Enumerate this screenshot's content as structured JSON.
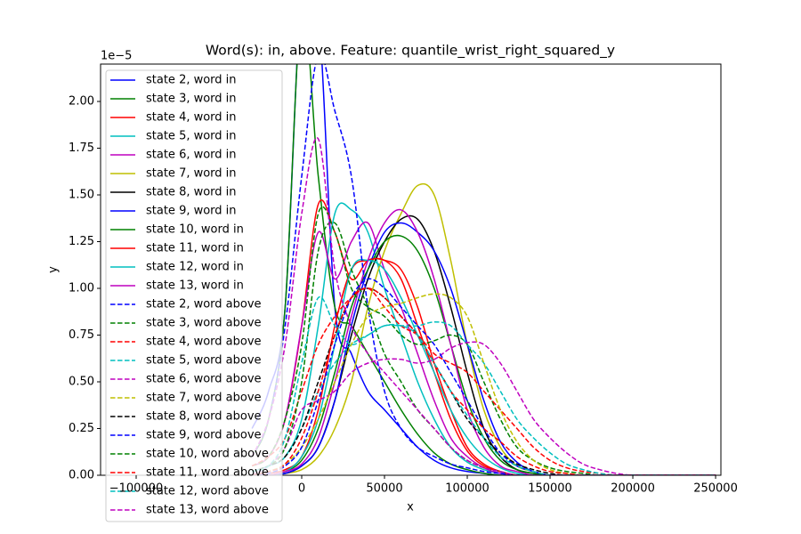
{
  "chart_data": {
    "type": "line",
    "title": "Word(s): in, above. Feature: quantile_wrist_right_squared_y",
    "x_label": "x",
    "y_label": "y",
    "y_offset_label": "1e−5",
    "xlim": [
      -121500,
      253200
    ],
    "ylim": [
      0,
      2.2
    ],
    "xticks": [
      {
        "value": -100000,
        "label": "−100000"
      },
      0,
      50000,
      100000,
      150000,
      200000,
      250000
    ],
    "yticks": [
      {
        "value": 0,
        "label": "0.00"
      },
      {
        "value": 0.25,
        "label": "0.25"
      },
      {
        "value": 0.5,
        "label": "0.50"
      },
      {
        "value": 0.75,
        "label": "0.75"
      },
      {
        "value": 1,
        "label": "1.00"
      },
      {
        "value": 1.25,
        "label": "1.25"
      },
      {
        "value": 1.5,
        "label": "1.50"
      },
      {
        "value": 1.75,
        "label": "1.75"
      },
      {
        "value": 2,
        "label": "2.00"
      }
    ],
    "grid": false,
    "legend": "upper left",
    "x": [
      -30000,
      -20000,
      -10000,
      0,
      10000,
      20000,
      30000,
      40000,
      50000,
      60000,
      70000,
      80000,
      90000,
      100000,
      110000,
      120000,
      130000,
      140000,
      150000,
      160000,
      170000,
      180000,
      190000,
      200000,
      210000,
      220000,
      230000,
      240000,
      250000
    ],
    "series": [
      {
        "name": "state 2, word in",
        "color": "#0000ff",
        "linestyle": "solid",
        "values": [
          0.25,
          0.45,
          0.9,
          2.6,
          2.5,
          0.9,
          0.65,
          0.45,
          0.35,
          0.25,
          0.15,
          0.08,
          0.04,
          0.02,
          0.01,
          0,
          0,
          0,
          0,
          0,
          0,
          0,
          0,
          0,
          0,
          0,
          0,
          0,
          0
        ]
      },
      {
        "name": "state 3, word in",
        "color": "#008000",
        "linestyle": "solid",
        "values": [
          0.1,
          0.3,
          0.9,
          2.5,
          1.6,
          0.9,
          0.8,
          0.65,
          0.5,
          0.35,
          0.22,
          0.12,
          0.06,
          0.03,
          0.01,
          0,
          0,
          0,
          0,
          0,
          0,
          0,
          0,
          0,
          0,
          0,
          0,
          0,
          0
        ]
      },
      {
        "name": "state 4, word in",
        "color": "#ff0000",
        "linestyle": "solid",
        "values": [
          0.05,
          0.1,
          0.3,
          0.8,
          1.45,
          1.3,
          1.05,
          1.15,
          1.15,
          1.1,
          0.9,
          0.6,
          0.35,
          0.15,
          0.06,
          0.02,
          0,
          0,
          0,
          0,
          0,
          0,
          0,
          0,
          0,
          0,
          0,
          0,
          0
        ]
      },
      {
        "name": "state 5, word in",
        "color": "#00bfbf",
        "linestyle": "solid",
        "values": [
          0.02,
          0.05,
          0.1,
          0.3,
          0.8,
          1.4,
          1.42,
          1.3,
          1.0,
          0.75,
          0.5,
          0.3,
          0.15,
          0.07,
          0.03,
          0.01,
          0,
          0,
          0,
          0,
          0,
          0,
          0,
          0,
          0,
          0,
          0,
          0,
          0
        ]
      },
      {
        "name": "state 6, word in",
        "color": "#bf00bf",
        "linestyle": "solid",
        "values": [
          0.05,
          0.1,
          0.3,
          0.8,
          1.3,
          1.05,
          1.25,
          1.35,
          1.1,
          0.9,
          0.65,
          0.4,
          0.2,
          0.1,
          0.04,
          0.01,
          0,
          0,
          0,
          0,
          0,
          0,
          0,
          0,
          0,
          0,
          0,
          0,
          0
        ]
      },
      {
        "name": "state 7, word in",
        "color": "#bfbf00",
        "linestyle": "solid",
        "values": [
          0,
          0,
          0.01,
          0.03,
          0.1,
          0.25,
          0.5,
          0.9,
          1.2,
          1.4,
          1.55,
          1.5,
          1.15,
          0.7,
          0.35,
          0.15,
          0.05,
          0.02,
          0,
          0,
          0,
          0,
          0,
          0,
          0,
          0,
          0,
          0,
          0
        ]
      },
      {
        "name": "state 8, word in",
        "color": "#000000",
        "linestyle": "solid",
        "values": [
          0,
          0,
          0.01,
          0.05,
          0.15,
          0.4,
          0.75,
          1.05,
          1.25,
          1.37,
          1.37,
          1.2,
          0.9,
          0.55,
          0.25,
          0.1,
          0.03,
          0.01,
          0,
          0,
          0,
          0,
          0,
          0,
          0,
          0,
          0,
          0,
          0
        ]
      },
      {
        "name": "state 9, word in",
        "color": "#0000ff",
        "linestyle": "solid",
        "values": [
          0,
          0,
          0.01,
          0.05,
          0.15,
          0.4,
          0.8,
          1.1,
          1.3,
          1.35,
          1.3,
          1.2,
          1.0,
          0.7,
          0.4,
          0.18,
          0.07,
          0.02,
          0,
          0,
          0,
          0,
          0,
          0,
          0,
          0,
          0,
          0,
          0
        ]
      },
      {
        "name": "state 10, word in",
        "color": "#008000",
        "linestyle": "solid",
        "values": [
          0,
          0,
          0.02,
          0.08,
          0.25,
          0.55,
          0.9,
          1.1,
          1.25,
          1.28,
          1.2,
          1.0,
          0.7,
          0.4,
          0.2,
          0.08,
          0.03,
          0.01,
          0,
          0,
          0,
          0,
          0,
          0,
          0,
          0,
          0,
          0,
          0
        ]
      },
      {
        "name": "state 11, word in",
        "color": "#ff0000",
        "linestyle": "solid",
        "values": [
          0,
          0.01,
          0.03,
          0.1,
          0.35,
          0.8,
          1.1,
          1.15,
          1.15,
          1.05,
          0.8,
          0.55,
          0.3,
          0.13,
          0.05,
          0.02,
          0,
          0,
          0,
          0,
          0,
          0,
          0,
          0,
          0,
          0,
          0,
          0,
          0
        ]
      },
      {
        "name": "state 12, word in",
        "color": "#00bfbf",
        "linestyle": "solid",
        "values": [
          0,
          0,
          0.02,
          0.1,
          0.3,
          0.7,
          1.1,
          1.15,
          1.1,
          0.95,
          0.75,
          0.55,
          0.35,
          0.2,
          0.1,
          0.04,
          0.01,
          0,
          0,
          0,
          0,
          0,
          0,
          0,
          0,
          0,
          0,
          0,
          0
        ]
      },
      {
        "name": "state 13, word in",
        "color": "#bf00bf",
        "linestyle": "solid",
        "values": [
          0,
          0,
          0.02,
          0.06,
          0.2,
          0.5,
          0.85,
          1.15,
          1.35,
          1.42,
          1.3,
          1.05,
          0.7,
          0.35,
          0.15,
          0.05,
          0.02,
          0,
          0,
          0,
          0,
          0,
          0,
          0,
          0,
          0,
          0,
          0,
          0
        ]
      },
      {
        "name": "state 2, word above",
        "color": "#0000ff",
        "linestyle": "dashed",
        "values": [
          0.1,
          0.3,
          0.8,
          1.6,
          2.25,
          1.95,
          1.6,
          0.9,
          0.45,
          0.25,
          0.15,
          0.1,
          0.06,
          0.04,
          0.02,
          0.01,
          0,
          0,
          0,
          0,
          0,
          0,
          0,
          0,
          0,
          0,
          0,
          0,
          0
        ]
      },
      {
        "name": "state 3, word above",
        "color": "#008000",
        "linestyle": "dashed",
        "values": [
          0.05,
          0.1,
          0.3,
          0.7,
          1.4,
          1.3,
          1.0,
          0.9,
          0.85,
          0.75,
          0.7,
          0.72,
          0.75,
          0.7,
          0.5,
          0.3,
          0.15,
          0.08,
          0.04,
          0.02,
          0.01,
          0,
          0,
          0,
          0,
          0,
          0,
          0,
          0
        ]
      },
      {
        "name": "state 4, word above",
        "color": "#ff0000",
        "linestyle": "dashed",
        "values": [
          0.05,
          0.1,
          0.2,
          0.45,
          0.7,
          0.85,
          0.95,
          1.0,
          0.9,
          0.8,
          0.75,
          0.65,
          0.6,
          0.55,
          0.45,
          0.35,
          0.25,
          0.15,
          0.08,
          0.04,
          0.02,
          0.01,
          0,
          0,
          0,
          0,
          0,
          0,
          0
        ]
      },
      {
        "name": "state 5, word above",
        "color": "#00bfbf",
        "linestyle": "dashed",
        "values": [
          0.02,
          0.05,
          0.1,
          0.25,
          0.45,
          0.6,
          0.7,
          0.75,
          0.8,
          0.8,
          0.8,
          0.82,
          0.8,
          0.7,
          0.6,
          0.45,
          0.3,
          0.2,
          0.12,
          0.06,
          0.03,
          0.01,
          0,
          0,
          0,
          0,
          0,
          0,
          0
        ]
      },
      {
        "name": "state 6, word above",
        "color": "#bf00bf",
        "linestyle": "dashed",
        "values": [
          0,
          0.05,
          0.15,
          0.35,
          0.4,
          0.45,
          0.55,
          0.6,
          0.62,
          0.62,
          0.6,
          0.62,
          0.68,
          0.71,
          0.7,
          0.6,
          0.45,
          0.3,
          0.2,
          0.12,
          0.06,
          0.03,
          0.01,
          0,
          0,
          0,
          0,
          0,
          0
        ]
      },
      {
        "name": "state 7, word above",
        "color": "#bfbf00",
        "linestyle": "dashed",
        "values": [
          0,
          0.02,
          0.06,
          0.15,
          0.3,
          0.5,
          0.7,
          0.85,
          0.9,
          0.92,
          0.95,
          0.97,
          0.95,
          0.85,
          0.6,
          0.35,
          0.18,
          0.08,
          0.03,
          0.01,
          0,
          0,
          0,
          0,
          0,
          0,
          0,
          0,
          0
        ]
      },
      {
        "name": "state 8, word above",
        "color": "#000000",
        "linestyle": "dashed",
        "values": [
          0.02,
          0.05,
          0.1,
          0.25,
          0.5,
          0.75,
          0.95,
          1.0,
          0.95,
          0.85,
          0.75,
          0.6,
          0.45,
          0.3,
          0.2,
          0.12,
          0.06,
          0.03,
          0.01,
          0,
          0,
          0,
          0,
          0,
          0,
          0,
          0,
          0,
          0
        ]
      },
      {
        "name": "state 9, word above",
        "color": "#0000ff",
        "linestyle": "dashed",
        "values": [
          0,
          0.01,
          0.05,
          0.15,
          0.4,
          0.7,
          0.95,
          1.05,
          1.0,
          0.9,
          0.8,
          0.7,
          0.55,
          0.4,
          0.25,
          0.12,
          0.05,
          0.02,
          0,
          0,
          0,
          0,
          0,
          0,
          0,
          0,
          0,
          0,
          0
        ]
      },
      {
        "name": "state 10, word above",
        "color": "#008000",
        "linestyle": "dashed",
        "values": [
          0.02,
          0.05,
          0.15,
          0.5,
          1.2,
          1.35,
          1.1,
          0.9,
          0.65,
          0.5,
          0.35,
          0.25,
          0.15,
          0.08,
          0.04,
          0.02,
          0,
          0,
          0,
          0,
          0,
          0,
          0,
          0,
          0,
          0,
          0,
          0,
          0
        ]
      },
      {
        "name": "state 11, word above",
        "color": "#ff0000",
        "linestyle": "dashed",
        "values": [
          0,
          0.02,
          0.06,
          0.2,
          0.45,
          0.75,
          0.95,
          1.0,
          0.95,
          0.85,
          0.75,
          0.6,
          0.45,
          0.35,
          0.25,
          0.18,
          0.1,
          0.05,
          0.02,
          0.01,
          0,
          0,
          0,
          0,
          0,
          0,
          0,
          0,
          0
        ]
      },
      {
        "name": "state 12, word above",
        "color": "#00bfbf",
        "linestyle": "dashed",
        "values": [
          0.02,
          0.05,
          0.2,
          0.6,
          0.95,
          0.8,
          0.7,
          0.75,
          0.8,
          0.8,
          0.75,
          0.6,
          0.45,
          0.32,
          0.2,
          0.1,
          0.05,
          0.02,
          0,
          0,
          0,
          0,
          0,
          0,
          0,
          0,
          0,
          0,
          0
        ]
      },
      {
        "name": "state 13, word above",
        "color": "#bf00bf",
        "linestyle": "dashed",
        "values": [
          0.1,
          0.3,
          0.7,
          1.4,
          1.8,
          1.1,
          0.8,
          0.65,
          0.55,
          0.45,
          0.35,
          0.25,
          0.15,
          0.08,
          0.04,
          0.02,
          0,
          0,
          0,
          0,
          0,
          0,
          0,
          0,
          0,
          0,
          0,
          0,
          0
        ]
      }
    ]
  }
}
